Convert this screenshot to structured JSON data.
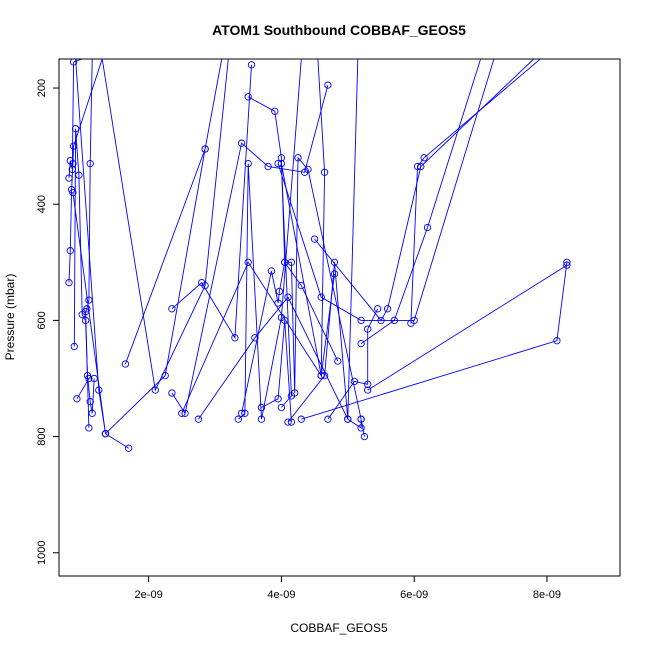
{
  "chart_data": {
    "type": "line",
    "title": "ATOM1 Southbound COBBAF_GEOS5",
    "xlabel": "COBBAF_GEOS5",
    "ylabel": "Pressure (mbar)",
    "xlim": [
      6.5e-10,
      9.1e-09
    ],
    "ylim": [
      1040,
      150
    ],
    "y_reversed": true,
    "x_ticks": [
      {
        "value": 2e-09,
        "label": "2e-09"
      },
      {
        "value": 4e-09,
        "label": "4e-09"
      },
      {
        "value": 6e-09,
        "label": "6e-09"
      },
      {
        "value": 8e-09,
        "label": "8e-09"
      }
    ],
    "y_ticks": [
      {
        "value": 200,
        "label": "200"
      },
      {
        "value": 400,
        "label": "400"
      },
      {
        "value": 600,
        "label": "600"
      },
      {
        "value": 800,
        "label": "800"
      },
      {
        "value": 1000,
        "label": "1000"
      }
    ],
    "grid": false,
    "legend": "none",
    "color": "#0000ff",
    "series": [
      {
        "x": [
          8e-10,
          8.2e-10,
          8.4e-10,
          8.6e-10,
          8.7e-10,
          1.3e-09
        ],
        "y": [
          535,
          480,
          375,
          330,
          300,
          150
        ]
      },
      {
        "x": [
          8.8e-10,
          9e-10,
          9.5e-10,
          1e-09,
          1.05e-09,
          1.08e-09,
          1.12e-09,
          1.15e-09,
          1.18e-09
        ],
        "y": [
          645,
          270,
          350,
          590,
          600,
          695,
          740,
          760,
          700
        ]
      },
      {
        "x": [
          8e-10,
          8.2e-10,
          8.5e-10,
          8.7e-10,
          1e-09
        ],
        "y": [
          355,
          325,
          340,
          155,
          150
        ]
      },
      {
        "x": [
          1.1e-09,
          1.05e-09,
          1.07e-09,
          1.1e-09,
          1.12e-09,
          1.15e-09
        ],
        "y": [
          785,
          585,
          580,
          565,
          330,
          150
        ]
      },
      {
        "x": [
          9.2e-10,
          1.1e-09
        ],
        "y": [
          735,
          700
        ]
      },
      {
        "x": [
          8.6e-10,
          1.35e-09,
          1.7e-09,
          1.35e-09,
          1.25e-09,
          9e-10
        ],
        "y": [
          380,
          795,
          820,
          795,
          720,
          150
        ]
      },
      {
        "x": [
          1.35e-09,
          2.25e-09,
          2.85e-09,
          3.1e-09
        ],
        "y": [
          795,
          695,
          305,
          150
        ]
      },
      {
        "x": [
          1.65e-09,
          2.85e-09
        ],
        "y": [
          675,
          305
        ]
      },
      {
        "x": [
          2.35e-09,
          2.8e-09,
          3.3e-09,
          3.55e-09
        ],
        "y": [
          580,
          535,
          630,
          160
        ]
      },
      {
        "x": [
          2.35e-09,
          2.55e-09,
          3.4e-09,
          3.8e-09,
          4.35e-09,
          4.7e-09
        ],
        "y": [
          725,
          760,
          295,
          335,
          345,
          195
        ]
      },
      {
        "x": [
          2.5e-09,
          3.5e-09,
          4.6e-09,
          4.65e-09,
          4.55e-09
        ],
        "y": [
          760,
          500,
          695,
          345,
          150
        ]
      },
      {
        "x": [
          2.75e-09,
          3.6e-09,
          4.1e-09,
          5e-09,
          5.15e-09
        ],
        "y": [
          770,
          630,
          560,
          770,
          150
        ]
      },
      {
        "x": [
          3.35e-09,
          3.45e-09,
          3.5e-09,
          3.7e-09,
          4e-09,
          4.3e-09
        ],
        "y": [
          770,
          760,
          330,
          770,
          595,
          150
        ]
      },
      {
        "x": [
          3.4e-09,
          3.85e-09,
          3.95e-09,
          3.97e-09,
          4.05e-09,
          4.3e-09,
          4.85e-09
        ],
        "y": [
          760,
          515,
          570,
          550,
          500,
          540,
          670
        ]
      },
      {
        "x": [
          3.5e-09,
          3.9e-09,
          4e-09,
          4.05e-09,
          4.15e-09,
          4.2e-09,
          4.25e-09,
          4.4e-09,
          5.2e-09
        ],
        "y": [
          215,
          240,
          320,
          500,
          500,
          725,
          320,
          340,
          770
        ]
      },
      {
        "x": [
          3.7e-09,
          3.95e-09,
          4.05e-09,
          4.15e-09
        ],
        "y": [
          750,
          735,
          600,
          775
        ]
      },
      {
        "x": [
          4e-09,
          4.15e-09,
          4e-09,
          4.6e-09,
          4.8e-09
        ],
        "y": [
          750,
          730,
          330,
          695,
          520
        ]
      },
      {
        "x": [
          4.1e-09,
          4.65e-09,
          4.8e-09,
          5e-09,
          5.2e-09,
          5.2e-09,
          5.25e-09
        ],
        "y": [
          775,
          695,
          500,
          770,
          785,
          770,
          800
        ]
      },
      {
        "x": [
          4.7e-09,
          5.1e-09,
          5.3e-09,
          5.3e-09,
          5.45e-09
        ],
        "y": [
          770,
          705,
          710,
          615,
          580
        ]
      },
      {
        "x": [
          4.5e-09,
          5.5e-09,
          5.6e-09,
          6.1e-09,
          7.8e-09
        ],
        "y": [
          460,
          600,
          580,
          335,
          150
        ]
      },
      {
        "x": [
          5.2e-09,
          5.7e-09,
          6.2e-09,
          7e-09
        ],
        "y": [
          640,
          600,
          440,
          150
        ]
      },
      {
        "x": [
          5.95e-09,
          6.05e-09,
          6.15e-09,
          7.9e-09
        ],
        "y": [
          605,
          335,
          320,
          150
        ]
      },
      {
        "x": [
          4.3e-09,
          8.15e-09,
          8.3e-09
        ],
        "y": [
          770,
          635,
          500
        ]
      },
      {
        "x": [
          5.3e-09,
          8.3e-09
        ],
        "y": [
          720,
          505
        ]
      },
      {
        "x": [
          3.2e-09,
          2.85e-09,
          2.1e-09,
          1.3e-09
        ],
        "y": [
          150,
          540,
          720,
          150
        ]
      },
      {
        "x": [
          3.95e-09,
          4.6e-09,
          5.2e-09,
          6e-09,
          7.2e-09
        ],
        "y": [
          330,
          560,
          600,
          600,
          150
        ]
      }
    ]
  }
}
